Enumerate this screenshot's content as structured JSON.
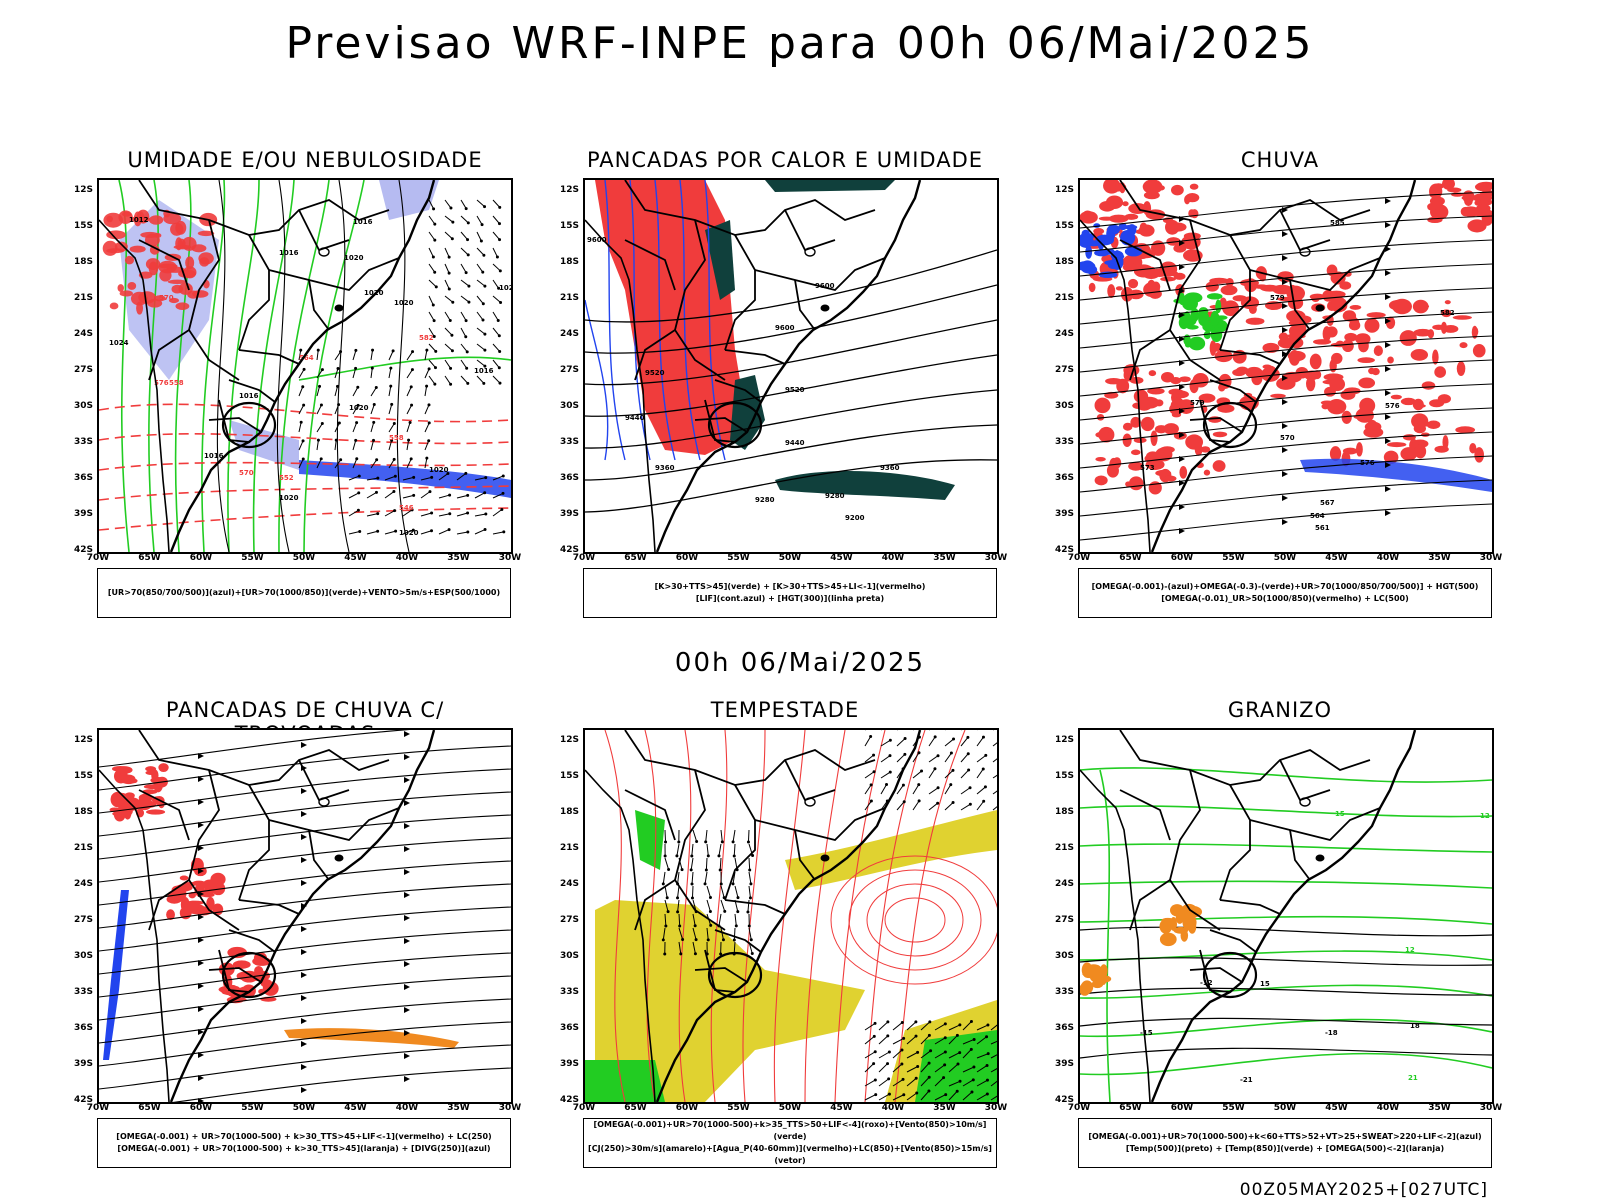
{
  "title": "Previsao WRF-INPE  para 00h 06/Mai/2025",
  "mid_time": "00h 06/Mai/2025",
  "footer_stamp": "00Z05MAY2025+[027UTC]",
  "lat_ticks": [
    "12S",
    "15S",
    "18S",
    "21S",
    "24S",
    "27S",
    "30S",
    "33S",
    "36S",
    "39S",
    "42S"
  ],
  "lon_ticks": [
    "70W",
    "65W",
    "60W",
    "55W",
    "50W",
    "45W",
    "40W",
    "35W",
    "30W"
  ],
  "panels": [
    {
      "id": "p1",
      "title": "UMIDADE E/OU NEBULOSIDADE",
      "legend": [
        "[UR>70(850/700/500)](azul)+[UR>70(1000/850)](verde)+VENTO>5m/s+ESP(500/1000)"
      ],
      "contour_labels": [
        "1012",
        "1016",
        "1016",
        "1020",
        "1020",
        "1020",
        "1024",
        "1016",
        "1020",
        "1020",
        "1020",
        "1016",
        "1020",
        "1016",
        "1020",
        "1020",
        "576",
        "570",
        "564",
        "558",
        "552",
        "546",
        "582",
        "570",
        "564",
        "558"
      ]
    },
    {
      "id": "p2",
      "title": "PANCADAS POR CALOR E UMIDADE",
      "legend": [
        "[K>30+TTS>45](verde) + [K>30+TTS>45+LI<-1](vermelho)",
        "[LIF](cont.azul) + [HGT(300)](linha preta)"
      ],
      "contour_labels": [
        "9600",
        "9600",
        "9600",
        "9520",
        "9440",
        "9440",
        "9360",
        "9360",
        "9280",
        "9280",
        "9200",
        "9520"
      ]
    },
    {
      "id": "p3",
      "title": "CHUVA",
      "legend": [
        "[OMEGA(-0.001)-(azul)+OMEGA(-0.3)-(verde)+UR>70(1000/850/700/500)] + HGT(500)",
        "[OMEGA(-0.01)_UR>50(1000/850)(vermelho) + LC(500)"
      ],
      "contour_labels": [
        "585",
        "582",
        "579",
        "576",
        "573",
        "570",
        "567",
        "564",
        "561",
        "579",
        "576"
      ]
    },
    {
      "id": "p4",
      "title": "PANCADAS DE CHUVA C/ TROVOADAS",
      "legend": [
        "[OMEGA(-0.001) + UR>70(1000-500) + k>30_TTS>45+LIF<-1](vermelho) + LC(250)",
        "[OMEGA(-0.001) + UR>70(1000-500) + k>30_TTS>45](laranja) + [DIVG(250)](azul)"
      ],
      "contour_labels": []
    },
    {
      "id": "p5",
      "title": "TEMPESTADE",
      "legend": [
        "[OMEGA(-0.001)+UR>70(1000-500)+k>35_TTS>50+LIF<-4](roxo)+[Vento(850)>10m/s](verde)",
        "[CJ(250)>30m/s](amarelo)+[Agua_P(40-60mm)](vermelho)+LC(850)+[Vento(850)>15m/s](vetor)"
      ],
      "contour_labels": []
    },
    {
      "id": "p6",
      "title": "GRANIZO",
      "legend": [
        "[OMEGA(-0.001)+UR>70(1000-500)+k<60+TTS>52+VT>25+SWEAT>220+LIF<-2](azul)",
        "[Temp(500)](preto) + [Temp(850)](verde) + [OMEGA(500)<-2](laranja)"
      ],
      "contour_labels": [
        "12",
        "15",
        "18",
        "21",
        "-12",
        "-15",
        "-18",
        "-21",
        "12",
        "15"
      ]
    }
  ],
  "colors": {
    "red": "#f03c3c",
    "green": "#22cc22",
    "blue": "#2244ee",
    "lavender": "#aeb4f0",
    "darkteal": "#10403c",
    "yellow": "#e0d230",
    "orange": "#f08a20"
  }
}
